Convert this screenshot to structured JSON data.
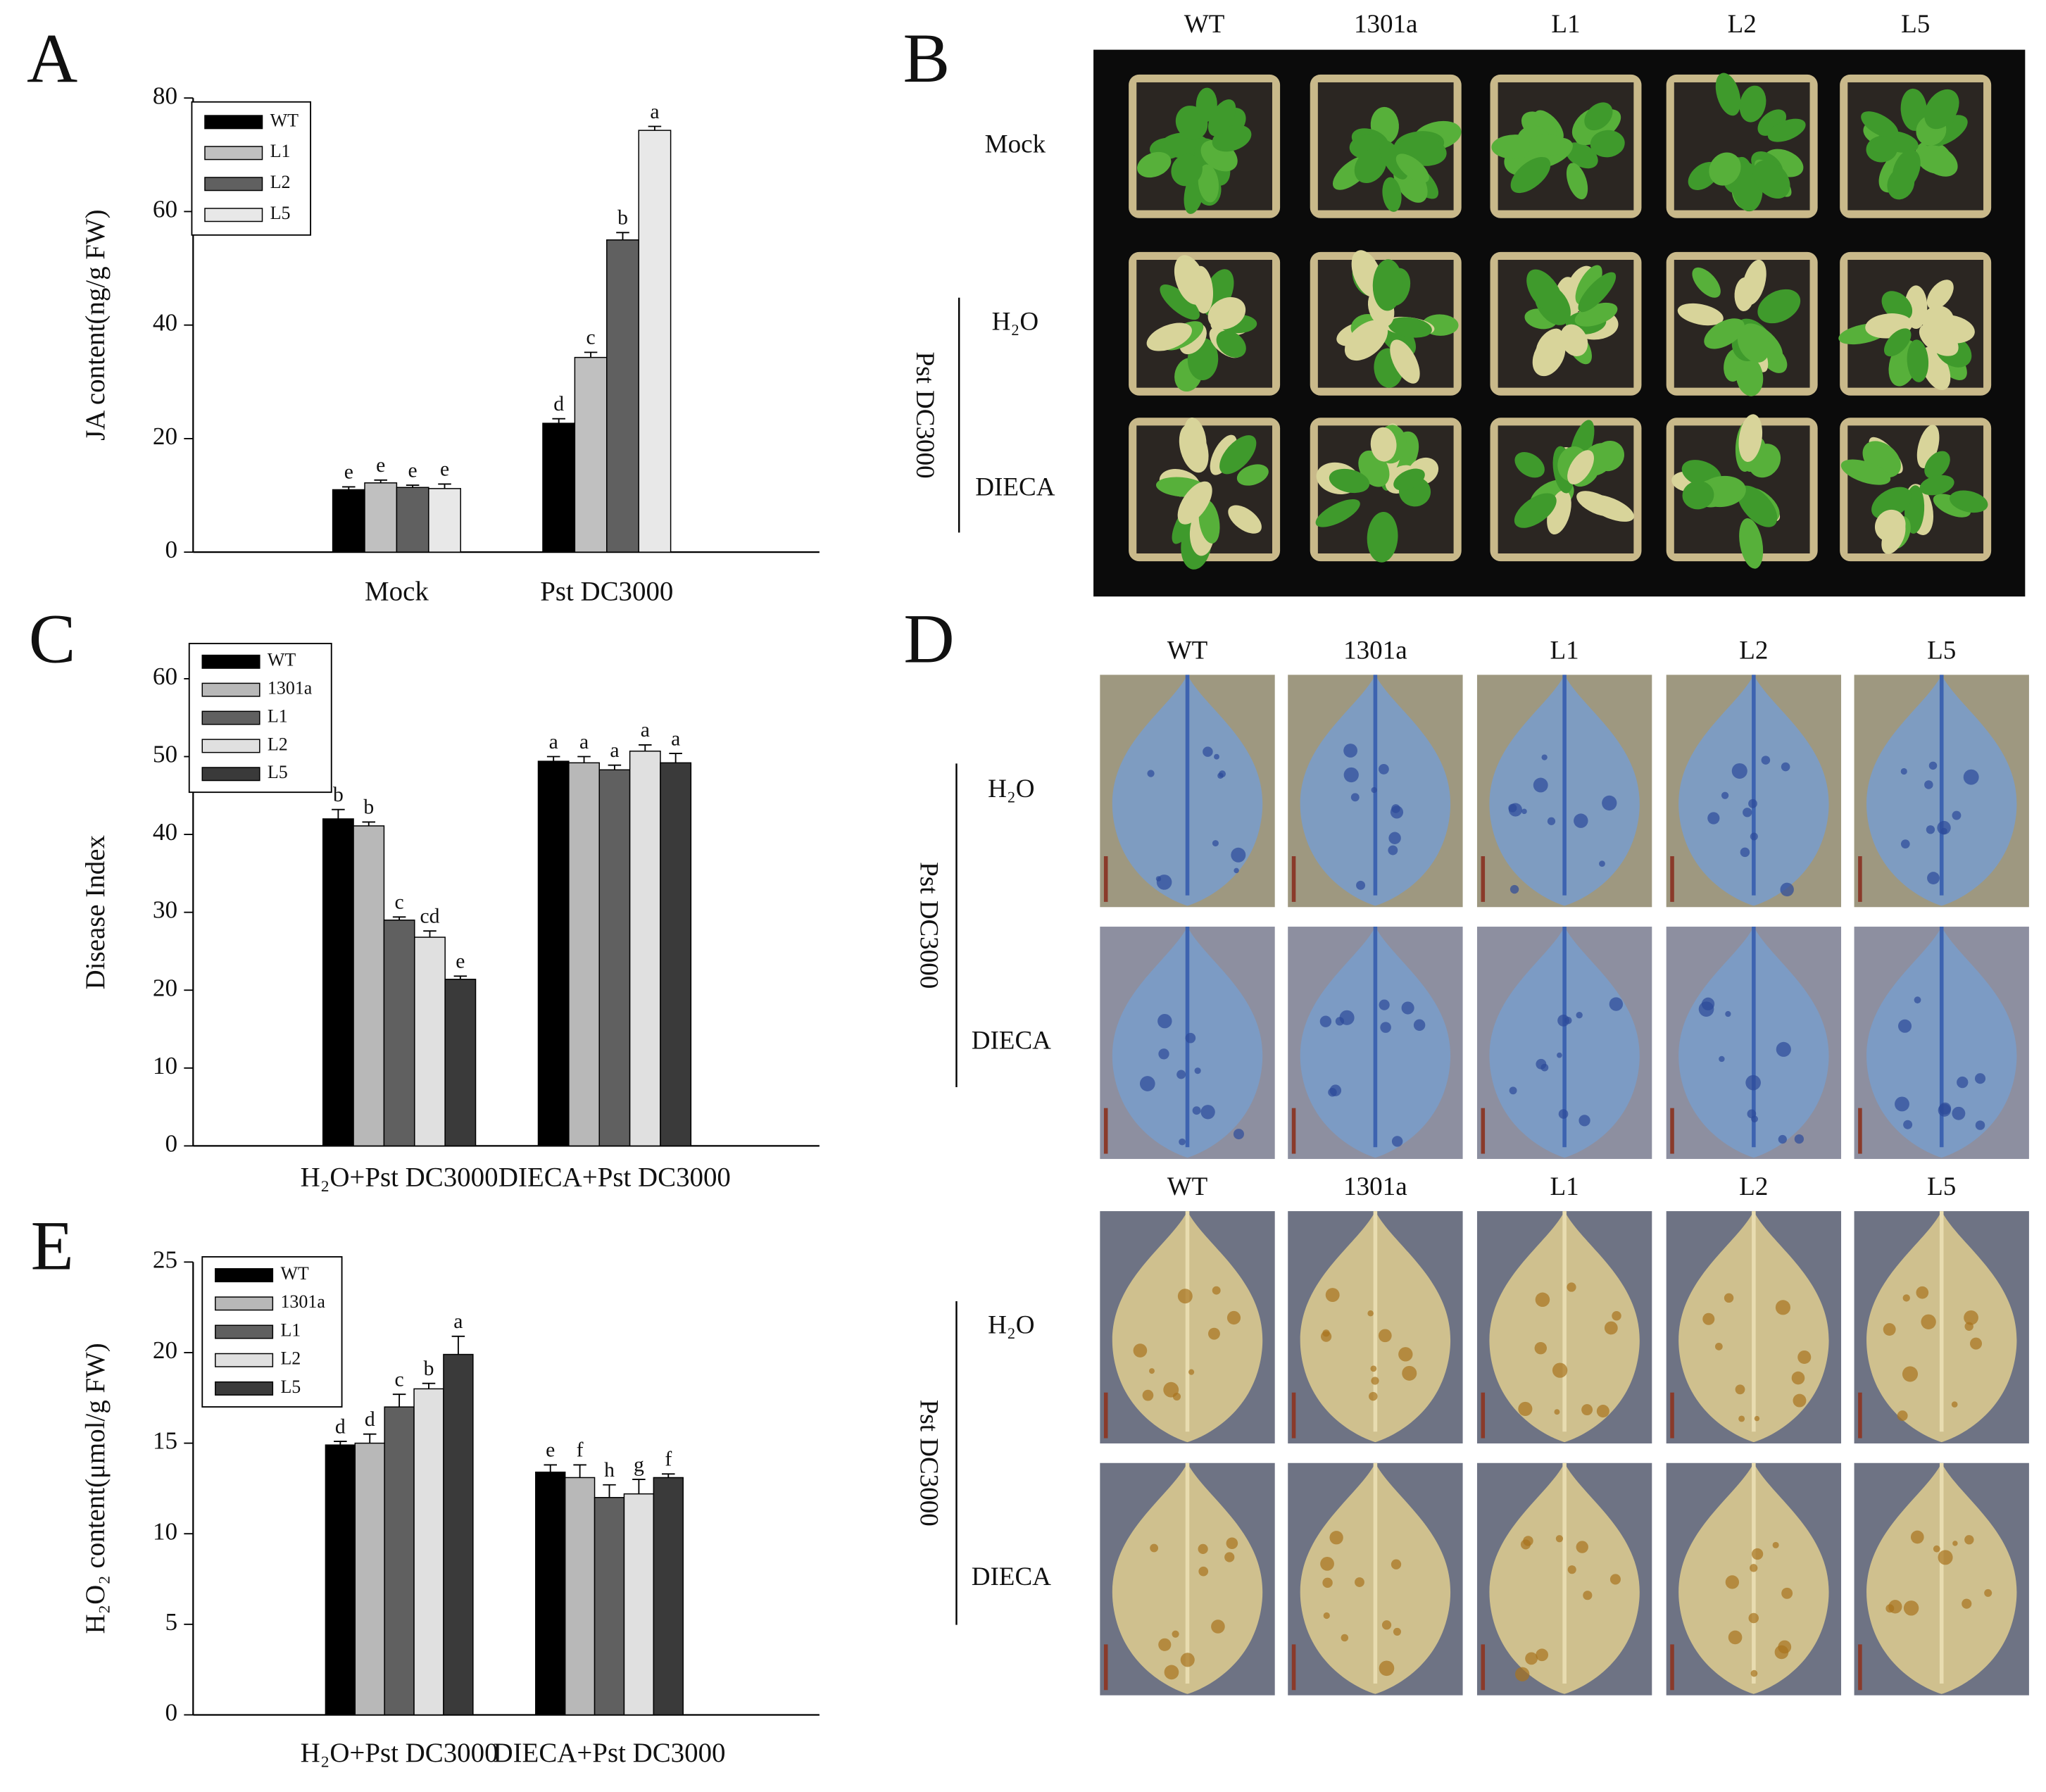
{
  "chart_data": [
    {
      "type": "bar",
      "panel_label": "A",
      "ylabel": "JA content(ng/g FW)",
      "categories": [
        "Mock",
        "Pst DC3000"
      ],
      "ylim": [
        0,
        80
      ],
      "yticks": [
        0,
        20,
        40,
        60,
        80
      ],
      "series": [
        {
          "name": "WT",
          "color": "#000000",
          "values": [
            11,
            22.7
          ],
          "errors": [
            0.5,
            0.8
          ],
          "labels": [
            "e",
            "d"
          ]
        },
        {
          "name": "L1",
          "color": "#c0c0c0",
          "values": [
            12.2,
            34.3
          ],
          "errors": [
            0.5,
            0.9
          ],
          "labels": [
            "e",
            "c"
          ]
        },
        {
          "name": "L2",
          "color": "#606060",
          "values": [
            11.4,
            55
          ],
          "errors": [
            0.4,
            1.3
          ],
          "labels": [
            "e",
            "b"
          ]
        },
        {
          "name": "L5",
          "color": "#e8e8e8",
          "values": [
            11.2,
            74.3
          ],
          "errors": [
            0.8,
            0.7
          ],
          "labels": [
            "e",
            "a"
          ]
        }
      ]
    },
    {
      "type": "bar",
      "panel_label": "C",
      "ylabel": "Disease Index",
      "categories": [
        "H₂O+Pst DC3000",
        "DIECA+Pst DC3000"
      ],
      "ylim": [
        0,
        60
      ],
      "yticks": [
        0,
        10,
        20,
        30,
        40,
        50,
        60
      ],
      "series": [
        {
          "name": "WT",
          "color": "#000000",
          "values": [
            42,
            49.4
          ],
          "errors": [
            1.2,
            0.6
          ],
          "labels": [
            "b",
            "a"
          ]
        },
        {
          "name": "1301a",
          "color": "#b8b8b8",
          "values": [
            41.1,
            49.2
          ],
          "errors": [
            0.5,
            0.8
          ],
          "labels": [
            "b",
            "a"
          ]
        },
        {
          "name": "L1",
          "color": "#606060",
          "values": [
            29,
            48.3
          ],
          "errors": [
            0.4,
            0.6
          ],
          "labels": [
            "c",
            "a"
          ]
        },
        {
          "name": "L2",
          "color": "#e0e0e0",
          "values": [
            26.8,
            50.7
          ],
          "errors": [
            0.8,
            0.8
          ],
          "labels": [
            "cd",
            "a"
          ]
        },
        {
          "name": "L5",
          "color": "#3a3a3a",
          "values": [
            21.4,
            49.2
          ],
          "errors": [
            0.4,
            1.2
          ],
          "labels": [
            "e",
            "a"
          ]
        }
      ]
    },
    {
      "type": "bar",
      "panel_label": "E",
      "ylabel": "H₂O₂ content(μmol/g FW)",
      "categories": [
        "H₂O+Pst DC3000",
        "DIECA+Pst DC3000"
      ],
      "ylim": [
        0,
        25
      ],
      "yticks": [
        0,
        5,
        10,
        15,
        20,
        25
      ],
      "series": [
        {
          "name": "WT",
          "color": "#000000",
          "values": [
            14.9,
            13.4
          ],
          "errors": [
            0.2,
            0.4
          ],
          "labels": [
            "d",
            "e"
          ]
        },
        {
          "name": "1301a",
          "color": "#b8b8b8",
          "values": [
            15,
            13.1
          ],
          "errors": [
            0.5,
            0.7
          ],
          "labels": [
            "d",
            "f"
          ]
        },
        {
          "name": "L1",
          "color": "#606060",
          "values": [
            17,
            12
          ],
          "errors": [
            0.7,
            0.7
          ],
          "labels": [
            "c",
            "h"
          ]
        },
        {
          "name": "L2",
          "color": "#e0e0e0",
          "values": [
            18,
            12.2
          ],
          "errors": [
            0.3,
            0.8
          ],
          "labels": [
            "b",
            "g"
          ]
        },
        {
          "name": "L5",
          "color": "#3a3a3a",
          "values": [
            19.9,
            13.1
          ],
          "errors": [
            1,
            0.2
          ],
          "labels": [
            "a",
            "f"
          ]
        }
      ]
    }
  ],
  "photo_panels": [
    {
      "panel_label": "B",
      "columns": [
        "WT",
        "1301a",
        "L1",
        "L2",
        "L5"
      ],
      "rows": [
        "Mock",
        "H₂O",
        "DIECA"
      ],
      "group": "Pst DC3000"
    },
    {
      "panel_label": "D",
      "columns": [
        "WT",
        "1301a",
        "L1",
        "L2",
        "L5"
      ],
      "rows": [
        "H₂O",
        "DIECA"
      ],
      "group": "Pst DC3000"
    },
    {
      "columns": [
        "WT",
        "1301a",
        "L1",
        "L2",
        "L5"
      ],
      "rows": [
        "H₂O",
        "DIECA"
      ],
      "group": "Pst DC3000"
    }
  ]
}
